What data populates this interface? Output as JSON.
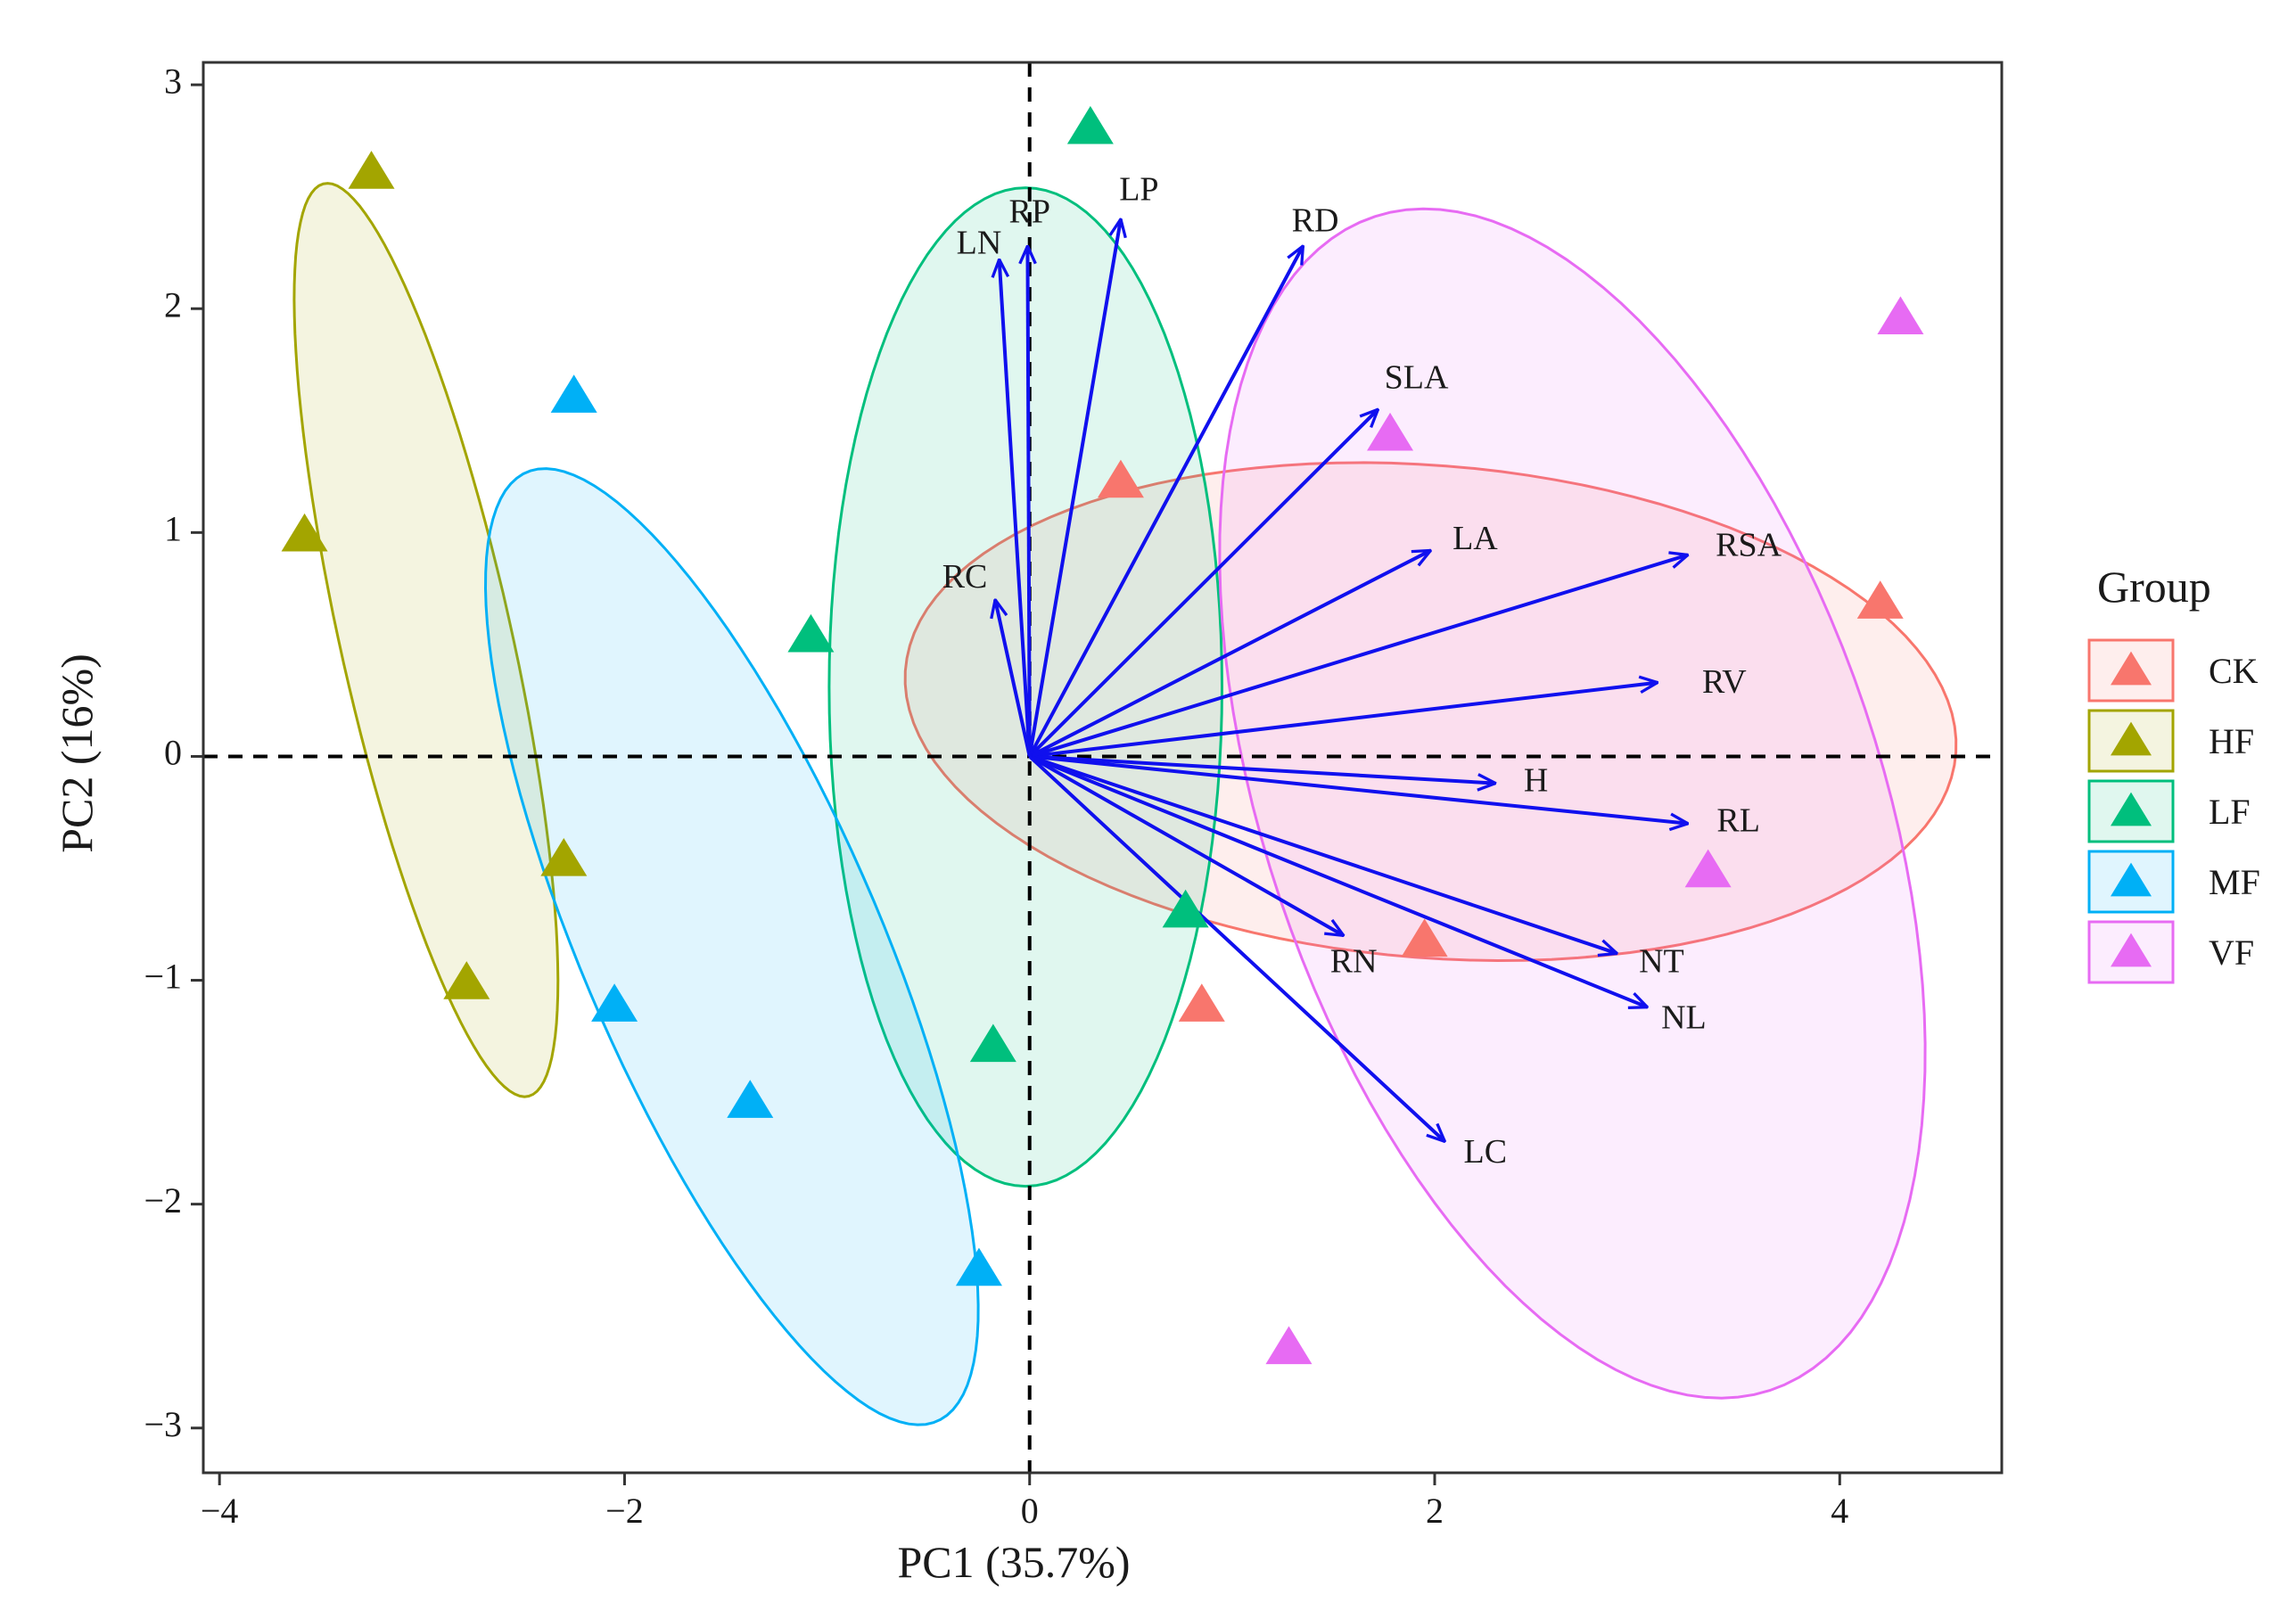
{
  "chart_data": {
    "type": "scatter",
    "subtype": "pca-biplot",
    "xlabel": "PC1 (35.7%)",
    "ylabel": "PC2 (16%)",
    "xlim": [
      -4.08,
      4.8
    ],
    "ylim": [
      -3.2,
      3.1
    ],
    "x_ticks": [
      {
        "v": -4,
        "t": "−4"
      },
      {
        "v": -2,
        "t": "−2"
      },
      {
        "v": 0,
        "t": "0"
      },
      {
        "v": 2,
        "t": "2"
      },
      {
        "v": 4,
        "t": "4"
      }
    ],
    "y_ticks": [
      {
        "v": -3,
        "t": "−3"
      },
      {
        "v": -2,
        "t": "−2"
      },
      {
        "v": -1,
        "t": "−1"
      },
      {
        "v": 0,
        "t": "0"
      },
      {
        "v": 1,
        "t": "1"
      },
      {
        "v": 2,
        "t": "2"
      },
      {
        "v": 3,
        "t": "3"
      }
    ],
    "grid": false,
    "reference_lines": {
      "x": 0,
      "y": 0,
      "style": "dashed"
    },
    "legend": {
      "title": "Group",
      "placement": "right"
    },
    "series": [
      {
        "name": "CK",
        "color": "#F8766D",
        "points": [
          [
            0.45,
            1.22
          ],
          [
            1.95,
            -0.83
          ],
          [
            0.85,
            -1.12
          ],
          [
            4.2,
            0.68
          ]
        ],
        "ellipse": {
          "cx": 1.98,
          "cy": 0.2,
          "rx": 2.6,
          "ry": 1.1,
          "angle": -4
        }
      },
      {
        "name": "HF",
        "color": "#A3A500",
        "points": [
          [
            -3.25,
            2.6
          ],
          [
            -3.58,
            0.98
          ],
          [
            -2.3,
            -0.47
          ],
          [
            -2.78,
            -1.02
          ]
        ],
        "ellipse": {
          "cx": -2.98,
          "cy": 0.52,
          "rx": 2.1,
          "ry": 0.42,
          "angle": -76
        }
      },
      {
        "name": "LF",
        "color": "#00BF7D",
        "points": [
          [
            0.3,
            2.8
          ],
          [
            -1.08,
            0.53
          ],
          [
            0.77,
            -0.7
          ],
          [
            -0.18,
            -1.3
          ]
        ],
        "ellipse": {
          "cx": -0.02,
          "cy": 0.31,
          "rx": 2.23,
          "ry": 0.97,
          "angle": 90
        }
      },
      {
        "name": "MF",
        "color": "#00B0F6",
        "points": [
          [
            -2.25,
            1.6
          ],
          [
            -2.05,
            -1.12
          ],
          [
            -1.38,
            -1.55
          ],
          [
            -0.25,
            -2.3
          ]
        ],
        "ellipse": {
          "cx": -1.47,
          "cy": -0.85,
          "rx": 2.35,
          "ry": 0.72,
          "angle": -64
        }
      },
      {
        "name": "VF",
        "color": "#E76BF3",
        "points": [
          [
            4.3,
            1.95
          ],
          [
            1.78,
            1.43
          ],
          [
            3.35,
            -0.52
          ],
          [
            1.28,
            -2.65
          ]
        ],
        "ellipse": {
          "cx": 2.68,
          "cy": -0.21,
          "rx": 2.8,
          "ry": 1.5,
          "angle": -68
        }
      }
    ],
    "vectors": [
      {
        "name": "LN",
        "x": -0.15,
        "y": 2.22,
        "label_x": -0.25,
        "label_y": 2.28
      },
      {
        "name": "RP",
        "x": -0.01,
        "y": 2.28,
        "label_x": 0.0,
        "label_y": 2.42
      },
      {
        "name": "LP",
        "x": 0.45,
        "y": 2.4,
        "label_x": 0.54,
        "label_y": 2.52
      },
      {
        "name": "RD",
        "x": 1.35,
        "y": 2.28,
        "label_x": 1.41,
        "label_y": 2.38
      },
      {
        "name": "SLA",
        "x": 1.72,
        "y": 1.55,
        "label_x": 1.91,
        "label_y": 1.68
      },
      {
        "name": "LA",
        "x": 1.98,
        "y": 0.92,
        "label_x": 2.2,
        "label_y": 0.96
      },
      {
        "name": "RSA",
        "x": 3.25,
        "y": 0.9,
        "label_x": 3.55,
        "label_y": 0.93
      },
      {
        "name": "RV",
        "x": 3.1,
        "y": 0.33,
        "label_x": 3.43,
        "label_y": 0.32
      },
      {
        "name": "H",
        "x": 2.3,
        "y": -0.12,
        "label_x": 2.5,
        "label_y": -0.12
      },
      {
        "name": "RL",
        "x": 3.25,
        "y": -0.3,
        "label_x": 3.5,
        "label_y": -0.3
      },
      {
        "name": "RN",
        "x": 1.55,
        "y": -0.8,
        "label_x": 1.6,
        "label_y": -0.93
      },
      {
        "name": "NT",
        "x": 2.9,
        "y": -0.88,
        "label_x": 3.12,
        "label_y": -0.93
      },
      {
        "name": "NL",
        "x": 3.05,
        "y": -1.12,
        "label_x": 3.23,
        "label_y": -1.18
      },
      {
        "name": "LC",
        "x": 2.05,
        "y": -1.72,
        "label_x": 2.25,
        "label_y": -1.78
      },
      {
        "name": "RC",
        "x": -0.17,
        "y": 0.7,
        "label_x": -0.32,
        "label_y": 0.79
      }
    ],
    "vector_color": "#1010EE"
  }
}
